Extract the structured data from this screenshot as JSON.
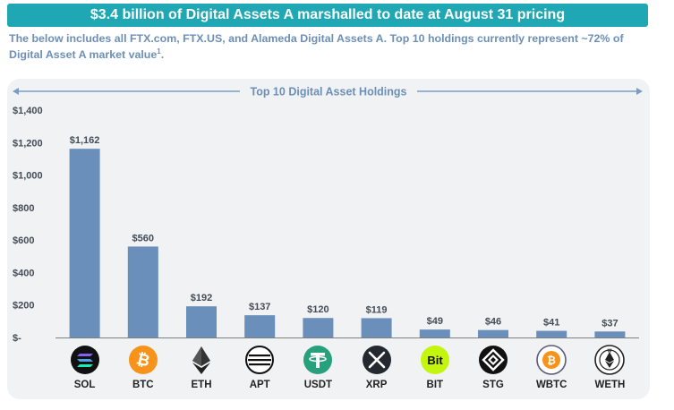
{
  "banner": {
    "text": "$3.4 billion of Digital Assets A marshalled to date at August 31 pricing"
  },
  "subtitle": {
    "text": "The below includes all FTX.com, FTX.US, and Alameda Digital Assets A. Top 10 holdings currently represent ~72% of Digital Asset A market value",
    "footnote": "1",
    "end": "."
  },
  "chart_data": {
    "type": "bar",
    "title": "Top 10 Digital Asset Holdings",
    "xlabel": "",
    "ylabel": "",
    "ylim": [
      0,
      1400
    ],
    "yticks": [
      0,
      200,
      400,
      600,
      800,
      1000,
      1200,
      1400
    ],
    "ytick_labels": [
      "$-",
      "$200",
      "$400",
      "$600",
      "$800",
      "$1,000",
      "$1,200",
      "$1,400"
    ],
    "categories": [
      "SOL",
      "BTC",
      "ETH",
      "APT",
      "USDT",
      "XRP",
      "BIT",
      "STG",
      "WBTC",
      "WETH"
    ],
    "values": [
      1162,
      560,
      192,
      137,
      120,
      119,
      49,
      46,
      41,
      37
    ],
    "data_labels": [
      "$1,162",
      "$560",
      "$192",
      "$137",
      "$120",
      "$119",
      "$49",
      "$46",
      "$41",
      "$37"
    ],
    "bar_color": "#6a8fbb",
    "grid": false
  },
  "icons": [
    "solana-icon",
    "bitcoin-icon",
    "ethereum-icon",
    "aptos-icon",
    "tether-icon",
    "xrp-icon",
    "bit-icon",
    "stargate-icon",
    "wbtc-icon",
    "weth-icon"
  ],
  "bit_icon_text": "Bit",
  "colors": {
    "banner": "#1fa8b3",
    "subtitle": "#6c8fb8",
    "bar": "#6a8fbb",
    "panel": "#f1f2f4",
    "bitcoin": "#f7931a",
    "tether": "#26a17b",
    "bit": "#c4f50c"
  }
}
